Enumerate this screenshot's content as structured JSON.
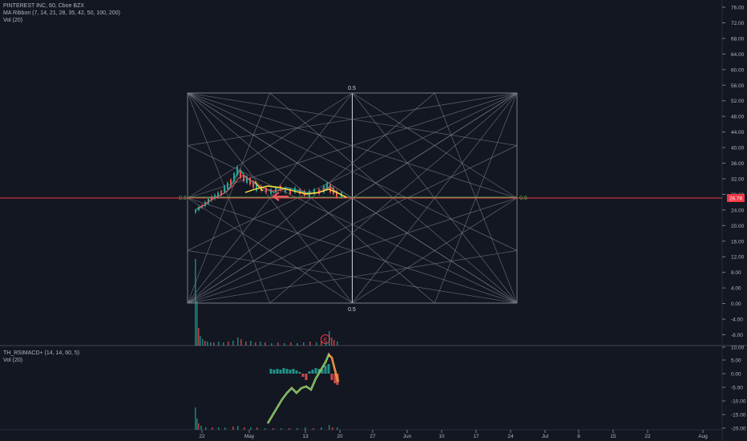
{
  "main_pane": {
    "legend": {
      "symbol_line": "PINTEREST INC, 60, Cboe BZX",
      "ma_ribbon": "MA Ribbon (7, 14, 21, 28, 35, 42, 50, 100, 200)",
      "volume": "Vol (20)"
    },
    "price_axis_labels": [
      "76.00",
      "72.00",
      "68.00",
      "64.00",
      "60.00",
      "56.00",
      "52.00",
      "48.00",
      "44.00",
      "40.00",
      "36.00",
      "32.00",
      "28.00",
      "24.00",
      "20.00",
      "16.00",
      "12.00",
      "8.00",
      "4.00",
      "0.00",
      "-4.00",
      "-8.00"
    ],
    "last_price_tag": "26.78",
    "gann_box_labels": {
      "top": "0.5",
      "bottom": "0.5",
      "left": "0.5",
      "right": "0.5"
    },
    "earnings_marker": "E"
  },
  "sub_pane": {
    "legend": {
      "indicator": "TH_RSIMACD+ (14, 14, 60, 5)",
      "volume": "Vol (20)"
    },
    "axis_labels": [
      "10.00",
      "5.00",
      "0.00",
      "-5.00",
      "-10.00",
      "-15.00",
      "-20.00"
    ]
  },
  "time_axis_labels": [
    "22",
    "May",
    "13",
    "20",
    "27",
    "Jun",
    "10",
    "17",
    "24",
    "Jul",
    "8",
    "15",
    "22",
    "Aug"
  ],
  "colors": {
    "background": "#131722",
    "grid_lines": "#787b86",
    "up": "#26a69a",
    "down": "#ef5350",
    "price_line": "#f23645",
    "green_level": "#4caf50",
    "yellow": "#ffeb3b",
    "arrow": "#f7525f"
  }
}
